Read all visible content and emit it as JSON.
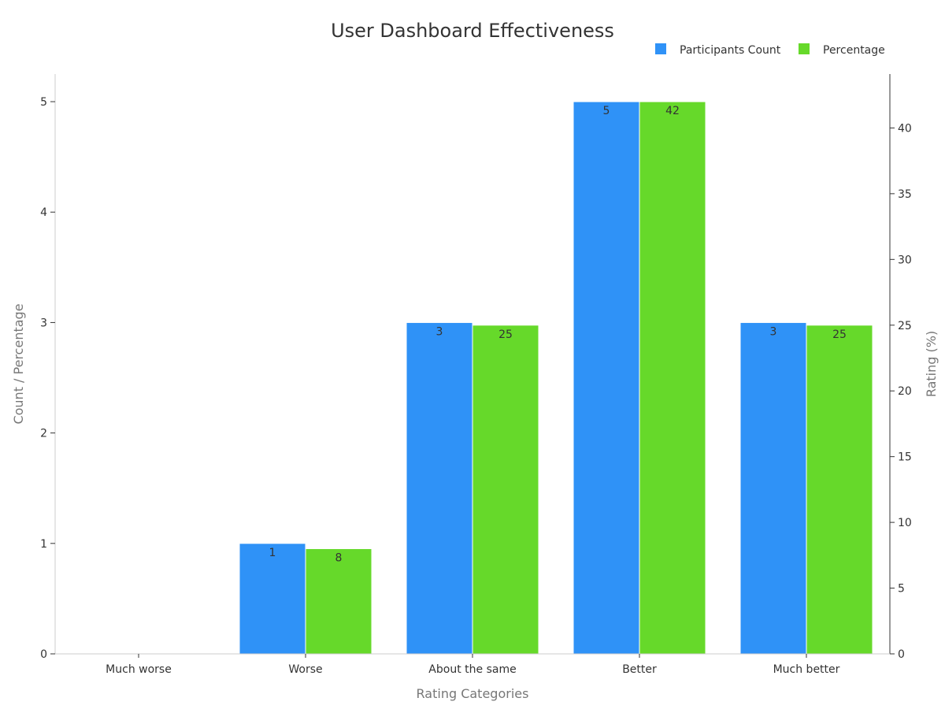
{
  "chart_data": {
    "type": "bar",
    "title": "User Dashboard Effectiveness",
    "xlabel": "Rating Categories",
    "ylabel_left": "Count / Percentage",
    "ylabel_right": "Rating (%)",
    "categories": [
      "Much worse",
      "Worse",
      "About the same",
      "Better",
      "Much better"
    ],
    "series": [
      {
        "name": "Participants Count",
        "axis": "left",
        "color": "#2f92f7",
        "values": [
          0,
          1,
          3,
          5,
          3
        ],
        "labels": [
          "",
          "1",
          "3",
          "5",
          "3"
        ]
      },
      {
        "name": "Percentage",
        "axis": "right",
        "color": "#66d92a",
        "values": [
          0,
          8,
          25,
          42,
          25
        ],
        "labels": [
          "",
          "8",
          "25",
          "42",
          "25"
        ]
      }
    ],
    "ylim_left": [
      0,
      5.25
    ],
    "yticks_left": [
      "0",
      "1",
      "2",
      "3",
      "4",
      "5"
    ],
    "ylim_right": [
      0,
      44.1
    ],
    "yticks_right": [
      "0",
      "5",
      "10",
      "15",
      "20",
      "25",
      "30",
      "35",
      "40"
    ],
    "legend_position": "top-right",
    "grid": false
  }
}
